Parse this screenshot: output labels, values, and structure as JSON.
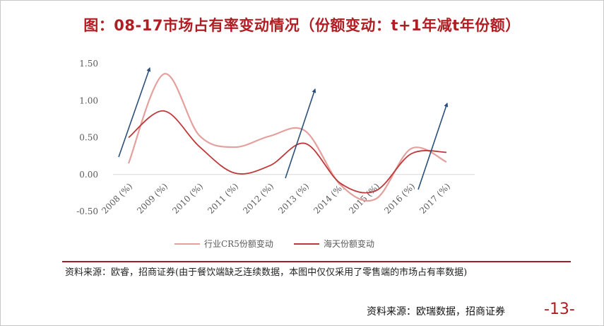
{
  "page": {
    "title": "图：08-17市场占有率变动情况（份额变动：t+1年减t年份额）",
    "note": "资料来源：欧睿，招商证券(由于餐饮端缺乏连续数据，本图中仅仅采用了零售端的市场占有率数据)",
    "source": "资料来源：欧瑞数据，招商证券",
    "page_number": "-13-"
  },
  "colors": {
    "title": "#b01e23",
    "series_cr5": "#e3a09c",
    "series_haitian": "#c0393a",
    "arrow": "#2b4f7a"
  },
  "chart_data": {
    "type": "line",
    "categories": [
      "2008 (%)",
      "2009 (%)",
      "2010 (%)",
      "2011 (%)",
      "2012 (%)",
      "2013 (%)",
      "2014 (%)",
      "2015 (%)",
      "2016 (%)",
      "2017 (%)"
    ],
    "series": [
      {
        "name": "行业CR5份额变动",
        "values": [
          0.15,
          1.36,
          0.53,
          0.37,
          0.52,
          0.59,
          -0.14,
          -0.33,
          0.35,
          0.17
        ]
      },
      {
        "name": "海天份额变动",
        "values": [
          0.5,
          0.86,
          0.38,
          0.02,
          0.12,
          0.42,
          -0.12,
          -0.22,
          0.28,
          0.3
        ]
      }
    ],
    "yticks": [
      "1.50",
      "1.00",
      "0.50",
      "0.00",
      "-0.50"
    ],
    "ylim": [
      -0.5,
      1.5
    ],
    "grid": false,
    "legend": "bottom",
    "annotations": "arrows"
  }
}
